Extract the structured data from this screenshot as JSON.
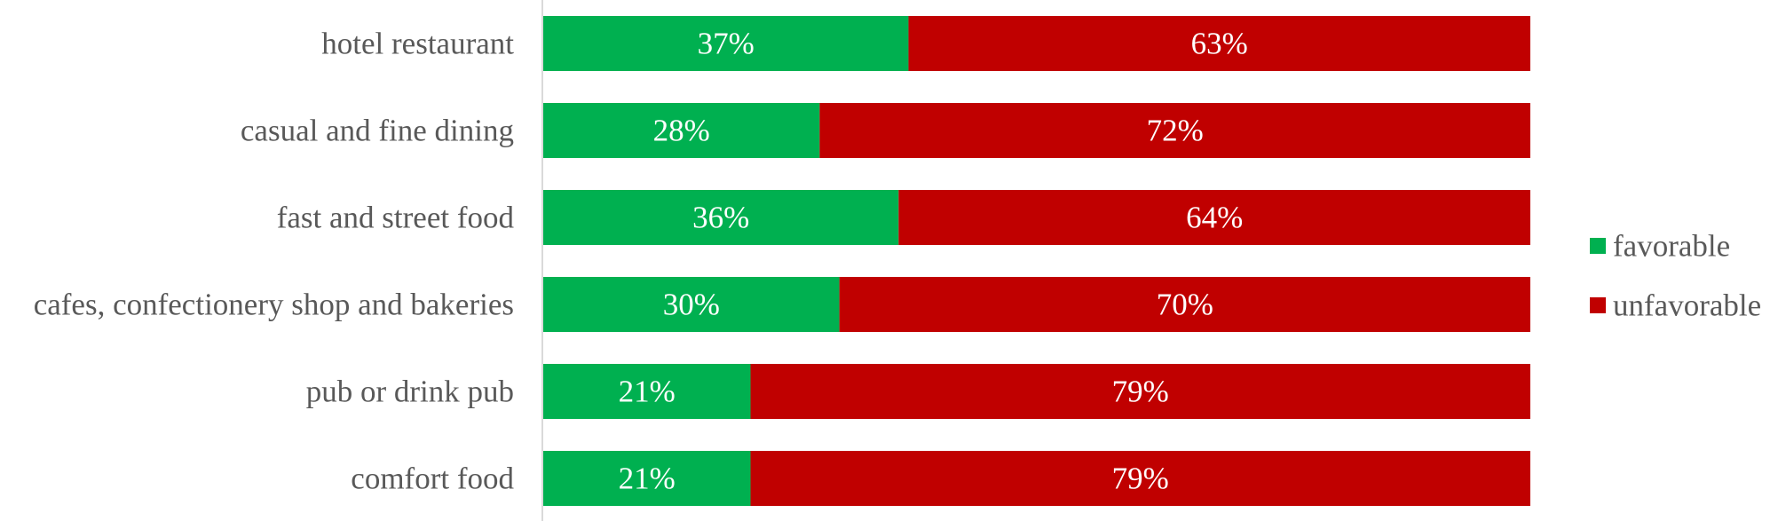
{
  "chart_data": {
    "type": "bar",
    "orientation": "horizontal",
    "stacked": true,
    "title": "",
    "xlabel": "",
    "ylabel": "",
    "xlim": [
      0,
      100
    ],
    "value_unit": "%",
    "grid": false,
    "legend_position": "right",
    "categories": [
      "hotel restaurant",
      "casual and fine dining",
      "fast and street food",
      "cafes, confectionery shop and bakeries",
      "pub or drink pub",
      "comfort food"
    ],
    "series": [
      {
        "name": "favorable",
        "color": "#00b050",
        "values": [
          37,
          28,
          36,
          30,
          21,
          21
        ]
      },
      {
        "name": "unfavorable",
        "color": "#c00000",
        "values": [
          63,
          72,
          64,
          70,
          79,
          79
        ]
      }
    ]
  }
}
